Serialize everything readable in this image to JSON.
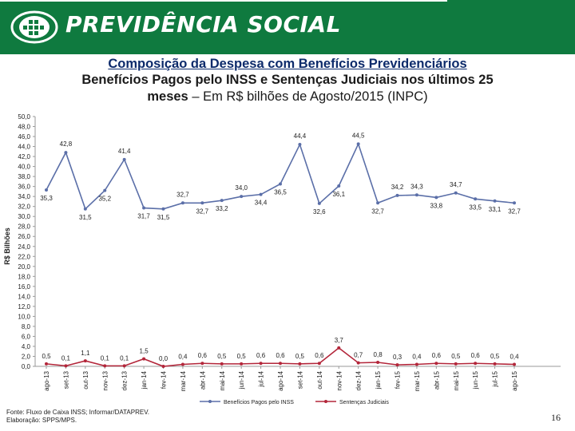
{
  "header": {
    "brand": "PREVIDÊNCIA SOCIAL"
  },
  "title": {
    "line1": "Composição da Despesa com Benefícios Previdenciários",
    "line2_bold": "Benefícios Pagos pelo INSS e Sentenças Judiciais nos últimos 25",
    "line3_bold": "meses",
    "line3_rest": " – Em R$ bilhões de Agosto/2015 (INPC)"
  },
  "chart_data": {
    "type": "line",
    "ylabel": "R$ Bilhões",
    "ylim": [
      0,
      50
    ],
    "ytick_step": 2,
    "ytick_labels": [
      "0,0",
      "2,0",
      "4,0",
      "6,0",
      "8,0",
      "10,0",
      "12,0",
      "14,0",
      "16,0",
      "18,0",
      "20,0",
      "22,0",
      "24,0",
      "26,0",
      "28,0",
      "30,0",
      "32,0",
      "34,0",
      "36,0",
      "38,0",
      "40,0",
      "42,0",
      "44,0",
      "46,0",
      "48,0",
      "50,0"
    ],
    "categories": [
      "ago-13",
      "set-13",
      "out-13",
      "nov-13",
      "dez-13",
      "jan-14",
      "fev-14",
      "mar-14",
      "abr-14",
      "mai-14",
      "jun-14",
      "jul-14",
      "ago-14",
      "set-14",
      "out-14",
      "nov-14",
      "dez-14",
      "jan-15",
      "fev-15",
      "mar-15",
      "abr-15",
      "mai-15",
      "jun-15",
      "jul-15",
      "ago-15"
    ],
    "grid": false,
    "legend_position": "bottom",
    "series": [
      {
        "name": "Benefícios Pagos pelo INSS",
        "color": "#5b6fa8",
        "values": [
          35.3,
          42.8,
          31.5,
          35.2,
          41.4,
          31.7,
          31.5,
          32.7,
          32.7,
          33.2,
          34.0,
          34.4,
          36.5,
          44.4,
          32.6,
          36.1,
          44.5,
          32.7,
          34.2,
          34.3,
          33.8,
          34.7,
          33.5,
          33.1,
          32.7
        ],
        "labels": [
          "35,3",
          "42,8",
          "31,5",
          "35,2",
          "41,4",
          "31,7",
          "31,5",
          "32,7",
          "32,7",
          "33,2",
          "34,0",
          "34,4",
          "36,5",
          "44,4",
          "32,6",
          "36,1",
          "44,5",
          "32,7",
          "34,2",
          "34,3",
          "33,8",
          "34,7",
          "33,5",
          "33,1",
          "32,7"
        ]
      },
      {
        "name": "Sentenças Judiciais",
        "color": "#b3263a",
        "values": [
          0.5,
          0.1,
          1.1,
          0.1,
          0.1,
          1.5,
          0.0,
          0.4,
          0.6,
          0.5,
          0.5,
          0.6,
          0.6,
          0.5,
          0.6,
          3.7,
          0.7,
          0.8,
          0.3,
          0.4,
          0.6,
          0.5,
          0.6,
          0.5,
          0.4
        ],
        "labels": [
          "0,5",
          "0,1",
          "1,1",
          "0,1",
          "0,1",
          "1,5",
          "0,0",
          "0,4",
          "0,6",
          "0,5",
          "0,5",
          "0,6",
          "0,6",
          "0,5",
          "0,6",
          "3,7",
          "0,7",
          "0,8",
          "0,3",
          "0,4",
          "0,6",
          "0,5",
          "0,6",
          "0,5",
          "0,4"
        ]
      }
    ]
  },
  "footer": {
    "line1": "Fonte: Fluxo de Caixa INSS; Informar/DATAPREV.",
    "line2": "Elaboração: SPPS/MPS."
  },
  "page_number": "16"
}
